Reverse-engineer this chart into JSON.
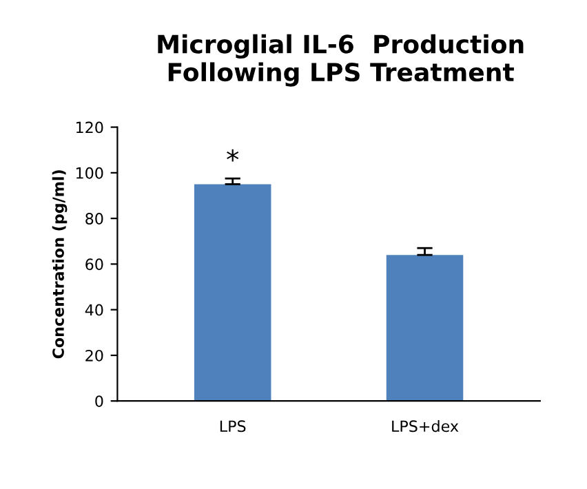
{
  "chart_data": {
    "type": "bar",
    "title": "Microglial IL-6  Production\nFollowing LPS Treatment",
    "ylabel": "Concentration (pg/ml)",
    "categories": [
      "LPS",
      "LPS+dex"
    ],
    "series": [
      {
        "color": "#4f81bd",
        "values": [
          95,
          64
        ],
        "errors": [
          2.5,
          3
        ]
      }
    ],
    "ylim": [
      0,
      120
    ],
    "yticks": [
      0,
      20,
      40,
      60,
      80,
      100,
      120
    ],
    "grid": false,
    "legend": false,
    "annotations": [
      {
        "text": "*",
        "x": "LPS",
        "y": 97.5
      }
    ]
  }
}
